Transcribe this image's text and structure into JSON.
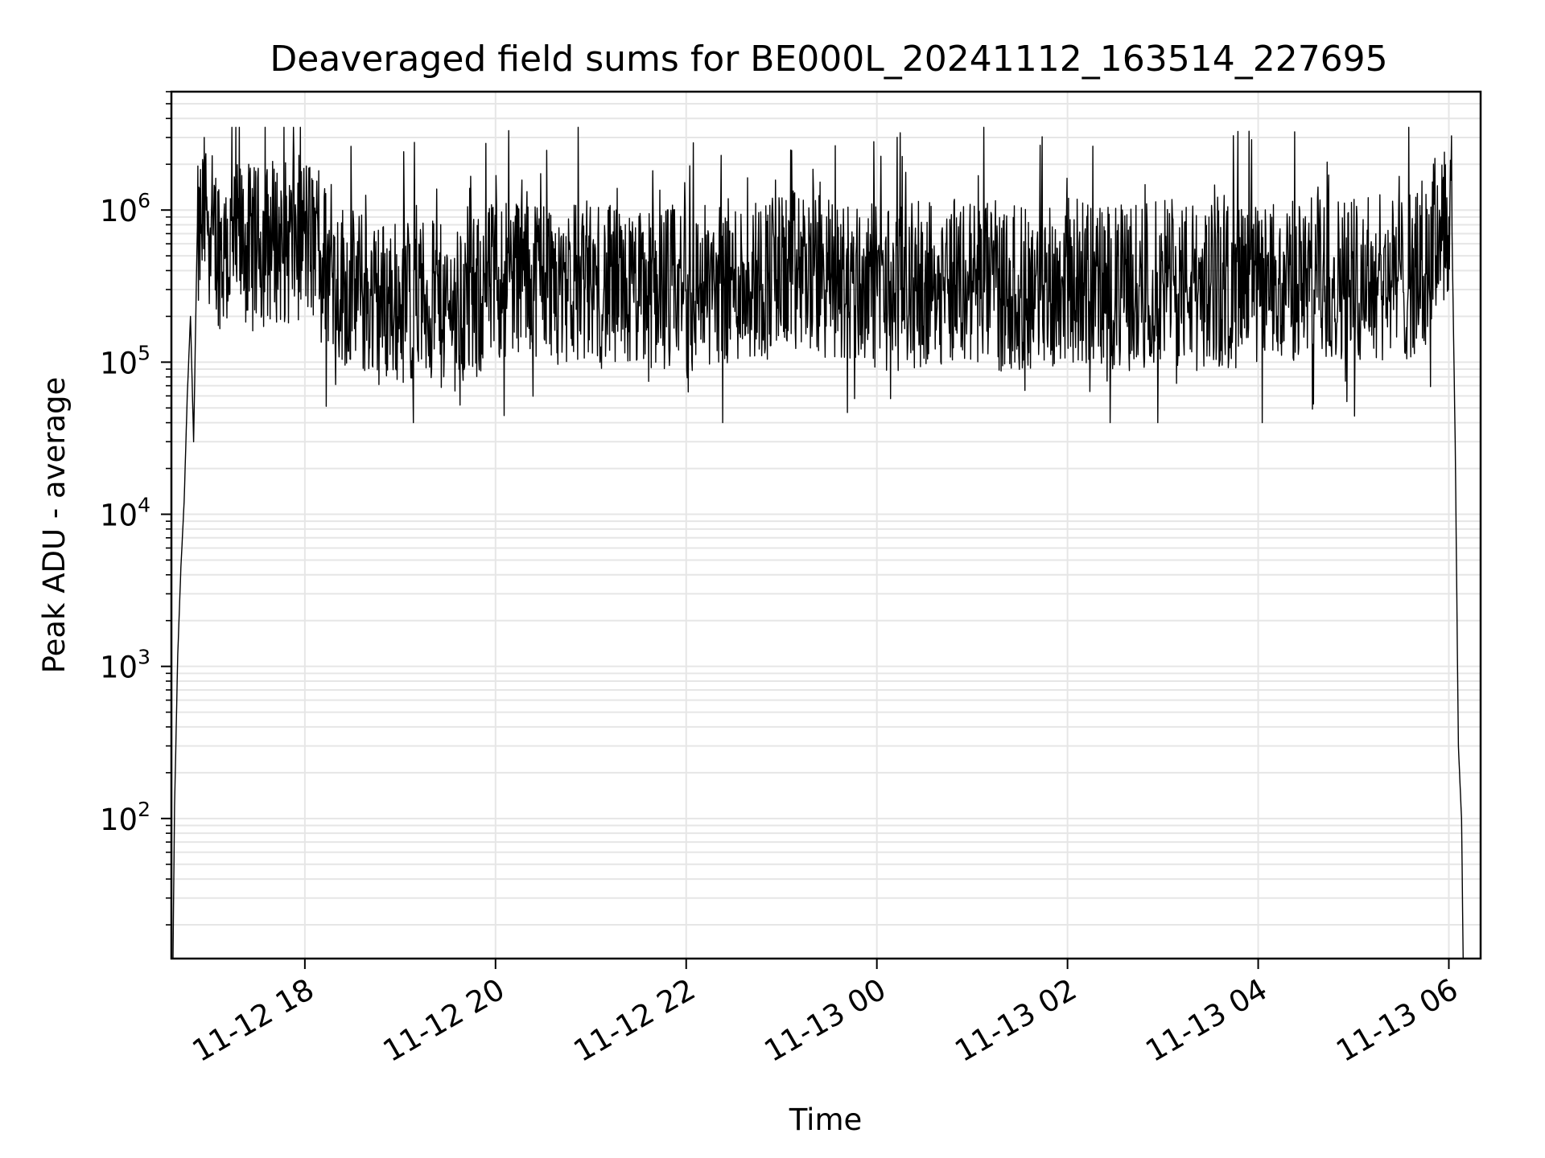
{
  "chart_data": {
    "type": "line",
    "title": "Deaveraged field sums for BE000L_20241112_163514_227695",
    "xlabel": "Time",
    "ylabel": "Peak ADU - average",
    "yscale": "log",
    "ylim": [
      12,
      6000000
    ],
    "xlim": [
      "2024-11-12 16:36",
      "2024-11-13 06:20"
    ],
    "grid": true,
    "x_ticks": [
      {
        "value": "2024-11-12 18:00",
        "label": "11-12 18"
      },
      {
        "value": "2024-11-12 20:00",
        "label": "11-12 20"
      },
      {
        "value": "2024-11-12 22:00",
        "label": "11-12 22"
      },
      {
        "value": "2024-11-13 00:00",
        "label": "11-13 00"
      },
      {
        "value": "2024-11-13 02:00",
        "label": "11-13 02"
      },
      {
        "value": "2024-11-13 04:00",
        "label": "11-13 04"
      },
      {
        "value": "2024-11-13 06:00",
        "label": "11-13 06"
      }
    ],
    "y_ticks": [
      {
        "value": 100,
        "base": "10",
        "exp": "2"
      },
      {
        "value": 1000,
        "base": "10",
        "exp": "3"
      },
      {
        "value": 10000,
        "base": "10",
        "exp": "4"
      },
      {
        "value": 100000,
        "base": "10",
        "exp": "5"
      },
      {
        "value": 1000000,
        "base": "10",
        "exp": "6"
      }
    ],
    "series": [
      {
        "color": "#000000",
        "x": [
          "2024-11-12 16:37",
          "2024-11-12 16:38",
          "2024-11-12 16:40",
          "2024-11-12 16:42",
          "2024-11-12 16:44",
          "2024-11-12 16:46",
          "2024-11-12 16:48",
          "2024-11-12 16:50",
          "2024-11-12 16:52",
          "2024-11-12 16:55",
          "2024-11-12 16:58",
          "2024-11-12 17:02",
          "2024-11-12 17:10",
          "2024-11-12 17:20",
          "2024-11-12 17:30",
          "2024-11-12 17:40",
          "2024-11-12 17:50",
          "2024-11-12 18:00",
          "2024-11-12 18:10",
          "2024-11-12 18:20",
          "2024-11-12 18:30",
          "2024-11-12 18:45",
          "2024-11-12 19:00",
          "2024-11-12 19:15",
          "2024-11-12 19:30",
          "2024-11-12 19:45",
          "2024-11-12 20:00",
          "2024-11-12 20:15",
          "2024-11-12 20:30",
          "2024-11-12 20:45",
          "2024-11-12 21:00",
          "2024-11-12 21:15",
          "2024-11-12 21:30",
          "2024-11-12 21:45",
          "2024-11-12 22:00",
          "2024-11-12 22:15",
          "2024-11-12 22:30",
          "2024-11-12 22:45",
          "2024-11-12 23:00",
          "2024-11-12 23:15",
          "2024-11-12 23:30",
          "2024-11-12 23:45",
          "2024-11-13 00:00",
          "2024-11-13 00:15",
          "2024-11-13 00:30",
          "2024-11-13 00:45",
          "2024-11-13 01:00",
          "2024-11-13 01:15",
          "2024-11-13 01:30",
          "2024-11-13 01:45",
          "2024-11-13 02:00",
          "2024-11-13 02:15",
          "2024-11-13 02:30",
          "2024-11-13 02:45",
          "2024-11-13 03:00",
          "2024-11-13 03:15",
          "2024-11-13 03:30",
          "2024-11-13 03:45",
          "2024-11-13 04:00",
          "2024-11-13 04:15",
          "2024-11-13 04:30",
          "2024-11-13 04:45",
          "2024-11-13 05:00",
          "2024-11-13 05:15",
          "2024-11-13 05:30",
          "2024-11-13 05:45",
          "2024-11-13 05:55",
          "2024-11-13 06:00",
          "2024-11-13 06:02",
          "2024-11-13 06:04",
          "2024-11-13 06:06",
          "2024-11-13 06:08",
          "2024-11-13 06:09"
        ],
        "values": [
          12,
          120,
          1200,
          4500,
          12000,
          60000,
          200000,
          30000,
          500000,
          800000,
          1000000,
          700000,
          500000,
          600000,
          550000,
          650000,
          600000,
          700000,
          500000,
          350000,
          300000,
          250000,
          260000,
          250000,
          220000,
          240000,
          350000,
          400000,
          380000,
          350000,
          330000,
          300000,
          280000,
          320000,
          300000,
          330000,
          340000,
          360000,
          380000,
          400000,
          350000,
          330000,
          320000,
          300000,
          330000,
          350000,
          340000,
          310000,
          300000,
          320000,
          350000,
          330000,
          300000,
          320000,
          340000,
          330000,
          310000,
          320000,
          300000,
          330000,
          350000,
          360000,
          370000,
          360000,
          350000,
          380000,
          900000,
          900000,
          700000,
          30000,
          300,
          100,
          12
        ]
      }
    ]
  }
}
